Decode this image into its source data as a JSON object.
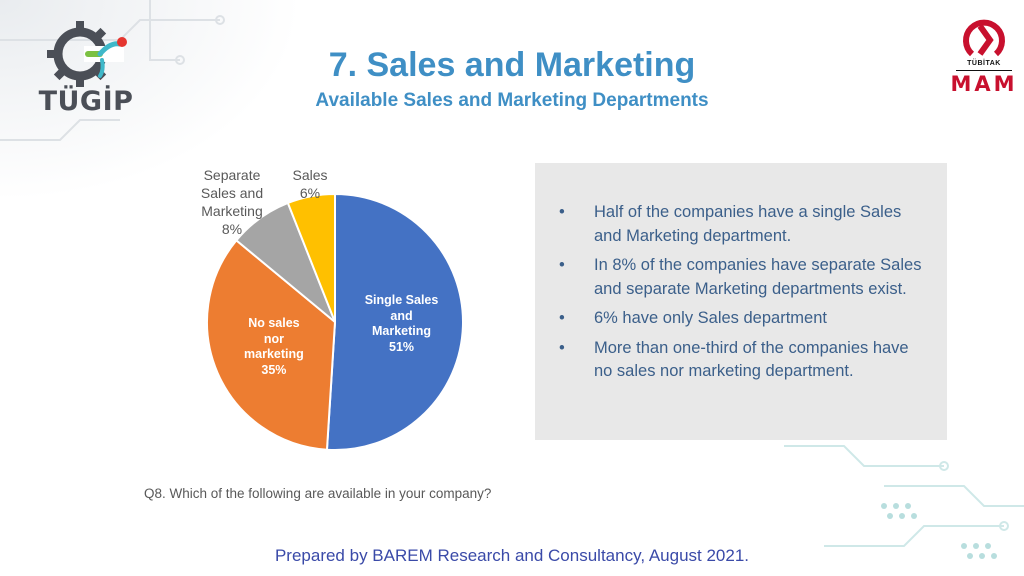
{
  "header": {
    "title": "7. Sales and Marketing",
    "subtitle": "Available Sales and Marketing Departments"
  },
  "logos": {
    "left": {
      "text": "TÜGİP",
      "icon": "gear-icon"
    },
    "right": {
      "tubitak": "TÜBİTAK",
      "mam": "MAM",
      "icon": "tubitak-emblem-icon"
    }
  },
  "chart_data": {
    "type": "pie",
    "title": "",
    "slices": [
      {
        "lines": [
          "Single Sales",
          "and",
          "Marketing",
          "51%"
        ],
        "value": 51,
        "color": "#4472c4",
        "label_inside": true
      },
      {
        "lines": [
          "No sales",
          "nor",
          "marketing",
          "35%"
        ],
        "value": 35,
        "color": "#ed7d31",
        "label_inside": true
      },
      {
        "lines": [
          "Separate",
          "Sales and",
          "Marketing",
          "8%"
        ],
        "value": 8,
        "color": "#a5a5a5",
        "label_inside": false
      },
      {
        "lines": [
          "Sales",
          "6%"
        ],
        "value": 6,
        "color": "#ffc000",
        "label_inside": false
      }
    ]
  },
  "info": {
    "bullet": "•",
    "items": [
      "Half of the companies have a single Sales and Marketing department.",
      "In 8% of the companies have separate Sales and separate Marketing departments exist.",
      "6% have only Sales department",
      "More than one-third of the companies have no sales nor marketing department."
    ]
  },
  "question": "Q8. Which of the following are available in your company?",
  "footer": "Prepared by BAREM Research and Consultancy, August 2021."
}
